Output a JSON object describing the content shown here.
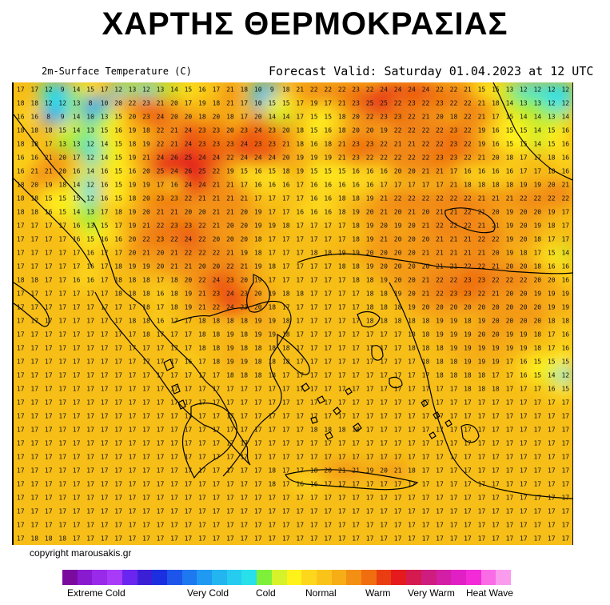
{
  "header": {
    "title": "ΧΑΡΤΗΣ ΘΕΡΜΟΚΡΑΣΙΑΣ",
    "parameter": "2m-Surface Temperature (C)",
    "forecast": "Forecast Valid:  Saturday 01.04.2023 at 12 UTC"
  },
  "footer": {
    "copyright": "copyright marousakis.gr"
  },
  "legend": {
    "colors": [
      "#7b0a9f",
      "#8a1ad0",
      "#9a2ae9",
      "#a83bf7",
      "#6a25f0",
      "#3a1fd6",
      "#1c2fe0",
      "#1d55ea",
      "#1e78ef",
      "#1f99f2",
      "#22b5f0",
      "#25ccf0",
      "#28e0ea",
      "#7ff03a",
      "#d6f22a",
      "#fff21a",
      "#fdd71b",
      "#fac31a",
      "#f6ad16",
      "#f38f12",
      "#f06d10",
      "#ea3e12",
      "#e41a1d",
      "#d41a4e",
      "#cf1c7f",
      "#d31fa5",
      "#e020c4",
      "#f22ad8",
      "#f96ce6",
      "#fb9bee"
    ],
    "labels": [
      {
        "text": "Extreme Cold",
        "key": "extreme_cold"
      },
      {
        "text": "Very Cold",
        "key": "very_cold"
      },
      {
        "text": "Cold",
        "key": "cold"
      },
      {
        "text": "Normal",
        "key": "normal"
      },
      {
        "text": "Warm",
        "key": "warm"
      },
      {
        "text": "Very Warm",
        "key": "very_warm"
      },
      {
        "text": "Heat Wave",
        "key": "heat_wave"
      }
    ]
  },
  "map": {
    "base_color": "#f7be17",
    "grid_rows": [
      [
        17,
        17,
        12,
        9,
        14,
        15,
        17,
        12,
        13,
        12,
        13,
        14,
        15,
        16,
        17,
        21,
        18,
        10,
        9,
        18,
        21,
        22,
        22,
        22,
        23,
        22,
        24,
        24,
        24,
        24,
        22,
        22,
        21,
        15,
        15,
        13,
        12,
        12,
        12,
        12
      ],
      [
        18,
        18,
        12,
        12,
        13,
        8,
        10,
        20,
        22,
        23,
        21,
        20,
        17,
        19,
        18,
        21,
        17,
        10,
        15,
        15,
        17,
        19,
        17,
        21,
        23,
        25,
        25,
        22,
        23,
        22,
        23,
        22,
        22,
        21,
        18,
        14,
        13,
        13,
        12,
        12
      ],
      [
        16,
        16,
        8,
        9,
        14,
        10,
        13,
        15,
        20,
        23,
        24,
        20,
        20,
        18,
        20,
        18,
        17,
        20,
        14,
        14,
        17,
        15,
        15,
        18,
        20,
        22,
        23,
        23,
        22,
        21,
        20,
        18,
        22,
        21,
        17,
        15,
        14,
        14,
        13,
        14
      ],
      [
        18,
        18,
        18,
        15,
        14,
        13,
        15,
        16,
        19,
        18,
        22,
        21,
        24,
        23,
        23,
        20,
        23,
        24,
        23,
        20,
        18,
        15,
        16,
        18,
        20,
        20,
        19,
        22,
        22,
        22,
        22,
        23,
        22,
        19,
        16,
        15,
        15,
        14,
        15,
        16
      ],
      [
        18,
        18,
        17,
        13,
        13,
        12,
        14,
        15,
        18,
        19,
        22,
        21,
        24,
        23,
        23,
        23,
        24,
        23,
        23,
        21,
        18,
        16,
        18,
        21,
        23,
        23,
        22,
        21,
        21,
        22,
        22,
        23,
        22,
        19,
        16,
        15,
        15,
        14,
        15,
        16
      ],
      [
        16,
        16,
        21,
        20,
        17,
        12,
        14,
        15,
        19,
        21,
        24,
        26,
        25,
        24,
        24,
        22,
        24,
        24,
        24,
        20,
        19,
        19,
        19,
        21,
        23,
        22,
        22,
        22,
        22,
        22,
        23,
        23,
        22,
        21,
        20,
        18,
        17,
        17,
        18,
        16
      ],
      [
        16,
        21,
        21,
        20,
        16,
        14,
        16,
        15,
        16,
        20,
        25,
        24,
        26,
        25,
        22,
        19,
        15,
        16,
        15,
        18,
        19,
        15,
        15,
        15,
        16,
        16,
        16,
        20,
        20,
        21,
        21,
        17,
        16,
        16,
        16,
        16,
        17,
        17,
        18,
        16
      ],
      [
        18,
        20,
        19,
        18,
        14,
        12,
        16,
        15,
        19,
        19,
        17,
        16,
        24,
        24,
        21,
        21,
        17,
        16,
        16,
        16,
        17,
        16,
        16,
        16,
        16,
        16,
        17,
        17,
        17,
        17,
        17,
        21,
        18,
        18,
        18,
        18,
        19,
        19,
        20,
        21
      ],
      [
        18,
        18,
        15,
        15,
        15,
        12,
        16,
        15,
        18,
        20,
        23,
        23,
        22,
        21,
        21,
        21,
        21,
        17,
        17,
        17,
        17,
        16,
        16,
        18,
        18,
        19,
        21,
        22,
        22,
        22,
        22,
        22,
        22,
        21,
        21,
        21,
        22,
        22,
        22,
        22
      ],
      [
        18,
        18,
        16,
        15,
        14,
        13,
        17,
        18,
        19,
        20,
        21,
        21,
        20,
        20,
        21,
        21,
        20,
        19,
        17,
        17,
        16,
        16,
        16,
        18,
        19,
        20,
        21,
        20,
        21,
        20,
        21,
        21,
        22,
        21,
        20,
        19,
        20,
        20,
        19,
        17
      ],
      [
        17,
        17,
        17,
        17,
        16,
        13,
        15,
        17,
        19,
        21,
        22,
        23,
        23,
        22,
        21,
        20,
        20,
        19,
        19,
        18,
        17,
        17,
        17,
        17,
        18,
        19,
        20,
        19,
        20,
        21,
        22,
        22,
        22,
        21,
        21,
        19,
        20,
        19,
        18,
        17
      ],
      [
        17,
        17,
        17,
        17,
        16,
        15,
        16,
        16,
        20,
        22,
        23,
        22,
        24,
        22,
        20,
        20,
        20,
        18,
        17,
        17,
        17,
        17,
        17,
        17,
        18,
        19,
        21,
        20,
        20,
        20,
        21,
        21,
        21,
        22,
        22,
        19,
        20,
        18,
        17,
        17
      ],
      [
        17,
        17,
        17,
        17,
        17,
        16,
        17,
        17,
        20,
        21,
        20,
        21,
        22,
        22,
        22,
        21,
        19,
        18,
        17,
        17,
        17,
        18,
        18,
        19,
        19,
        20,
        20,
        20,
        20,
        21,
        21,
        21,
        21,
        21,
        20,
        19,
        18,
        17,
        15,
        14
      ],
      [
        17,
        17,
        17,
        17,
        17,
        16,
        17,
        18,
        19,
        19,
        20,
        21,
        21,
        20,
        20,
        22,
        21,
        19,
        18,
        17,
        17,
        17,
        17,
        18,
        18,
        19,
        20,
        20,
        20,
        20,
        21,
        21,
        22,
        22,
        21,
        20,
        20,
        18,
        16,
        16
      ],
      [
        18,
        18,
        17,
        17,
        16,
        16,
        17,
        18,
        18,
        18,
        17,
        18,
        20,
        22,
        24,
        23,
        20,
        19,
        17,
        17,
        17,
        17,
        17,
        17,
        18,
        18,
        19,
        20,
        20,
        21,
        22,
        22,
        23,
        23,
        22,
        22,
        22,
        20,
        20,
        16
      ],
      [
        17,
        17,
        17,
        17,
        17,
        17,
        17,
        18,
        18,
        18,
        16,
        18,
        19,
        21,
        23,
        24,
        23,
        20,
        19,
        18,
        18,
        17,
        17,
        17,
        17,
        18,
        18,
        19,
        20,
        21,
        22,
        23,
        23,
        22,
        21,
        20,
        20,
        19,
        19,
        19
      ],
      [
        17,
        17,
        17,
        17,
        17,
        17,
        17,
        17,
        17,
        18,
        17,
        18,
        19,
        21,
        22,
        24,
        23,
        20,
        18,
        17,
        17,
        17,
        17,
        17,
        17,
        18,
        18,
        18,
        19,
        20,
        20,
        20,
        20,
        20,
        20,
        20,
        20,
        20,
        19,
        19
      ],
      [
        17,
        17,
        17,
        17,
        17,
        17,
        17,
        17,
        18,
        18,
        16,
        17,
        17,
        18,
        18,
        18,
        18,
        19,
        19,
        18,
        17,
        17,
        17,
        17,
        17,
        18,
        18,
        18,
        18,
        18,
        19,
        19,
        18,
        19,
        20,
        20,
        20,
        20,
        18,
        18
      ],
      [
        17,
        17,
        17,
        17,
        17,
        17,
        17,
        17,
        17,
        18,
        17,
        17,
        17,
        18,
        18,
        19,
        18,
        19,
        19,
        18,
        17,
        17,
        17,
        17,
        17,
        17,
        17,
        17,
        18,
        18,
        19,
        19,
        19,
        20,
        20,
        19,
        19,
        18,
        17,
        16
      ],
      [
        17,
        17,
        17,
        17,
        17,
        17,
        17,
        17,
        17,
        17,
        17,
        17,
        17,
        18,
        18,
        19,
        18,
        18,
        18,
        18,
        17,
        17,
        17,
        17,
        17,
        17,
        17,
        17,
        18,
        18,
        18,
        19,
        19,
        19,
        19,
        19,
        19,
        18,
        17,
        16
      ],
      [
        17,
        17,
        17,
        17,
        17,
        17,
        17,
        17,
        17,
        17,
        17,
        17,
        16,
        17,
        18,
        19,
        19,
        18,
        18,
        18,
        17,
        17,
        17,
        17,
        17,
        17,
        17,
        17,
        17,
        18,
        18,
        18,
        19,
        19,
        19,
        17,
        16,
        15,
        15,
        15
      ],
      [
        17,
        17,
        17,
        17,
        17,
        17,
        17,
        17,
        17,
        17,
        17,
        17,
        17,
        17,
        17,
        18,
        18,
        18,
        18,
        17,
        17,
        17,
        17,
        17,
        17,
        17,
        17,
        17,
        17,
        17,
        18,
        18,
        18,
        18,
        17,
        17,
        16,
        15,
        14,
        12
      ],
      [
        17,
        17,
        17,
        17,
        17,
        17,
        17,
        17,
        17,
        17,
        17,
        17,
        17,
        17,
        17,
        17,
        17,
        17,
        17,
        17,
        17,
        17,
        17,
        17,
        17,
        17,
        17,
        17,
        17,
        17,
        17,
        17,
        18,
        18,
        18,
        17,
        17,
        17,
        16,
        15
      ],
      [
        17,
        17,
        17,
        17,
        17,
        17,
        17,
        17,
        17,
        17,
        17,
        17,
        17,
        17,
        17,
        17,
        17,
        17,
        17,
        17,
        17,
        17,
        17,
        17,
        17,
        17,
        17,
        17,
        17,
        17,
        17,
        17,
        17,
        17,
        17,
        17,
        17,
        17,
        17,
        17
      ],
      [
        17,
        17,
        17,
        17,
        17,
        17,
        17,
        17,
        17,
        17,
        17,
        17,
        17,
        17,
        17,
        17,
        17,
        17,
        17,
        17,
        17,
        17,
        17,
        17,
        17,
        17,
        17,
        17,
        17,
        17,
        17,
        17,
        17,
        17,
        17,
        17,
        17,
        17,
        17,
        17
      ],
      [
        17,
        17,
        17,
        17,
        17,
        17,
        17,
        17,
        17,
        17,
        17,
        17,
        17,
        17,
        17,
        17,
        17,
        17,
        17,
        17,
        17,
        18,
        18,
        18,
        18,
        17,
        17,
        17,
        17,
        17,
        17,
        17,
        17,
        17,
        17,
        17,
        17,
        17,
        17,
        17
      ],
      [
        17,
        17,
        17,
        17,
        17,
        17,
        17,
        17,
        17,
        17,
        17,
        17,
        17,
        17,
        17,
        17,
        17,
        17,
        17,
        17,
        17,
        17,
        17,
        17,
        17,
        17,
        17,
        17,
        17,
        17,
        17,
        17,
        17,
        17,
        17,
        17,
        17,
        17,
        17,
        17
      ],
      [
        17,
        17,
        17,
        17,
        17,
        17,
        17,
        17,
        17,
        17,
        17,
        17,
        17,
        17,
        17,
        17,
        17,
        17,
        17,
        17,
        17,
        17,
        17,
        17,
        17,
        17,
        17,
        17,
        17,
        17,
        17,
        17,
        17,
        17,
        17,
        17,
        17,
        17,
        17,
        17
      ],
      [
        17,
        17,
        17,
        17,
        17,
        17,
        17,
        17,
        17,
        17,
        17,
        17,
        17,
        17,
        17,
        17,
        17,
        17,
        18,
        17,
        17,
        18,
        20,
        21,
        21,
        19,
        20,
        21,
        18,
        17,
        17,
        17,
        17,
        17,
        17,
        17,
        17,
        17,
        17,
        17
      ],
      [
        17,
        17,
        17,
        17,
        17,
        17,
        17,
        17,
        17,
        17,
        17,
        17,
        17,
        17,
        17,
        17,
        17,
        17,
        18,
        17,
        16,
        16,
        17,
        17,
        17,
        17,
        17,
        17,
        17,
        17,
        17,
        17,
        17,
        17,
        17,
        17,
        17,
        17,
        17,
        17
      ],
      [
        17,
        17,
        17,
        17,
        17,
        17,
        17,
        17,
        17,
        17,
        17,
        17,
        17,
        17,
        17,
        17,
        17,
        17,
        17,
        17,
        17,
        17,
        17,
        17,
        17,
        17,
        17,
        17,
        17,
        17,
        17,
        17,
        17,
        17,
        17,
        17,
        17,
        17,
        17,
        17
      ],
      [
        17,
        17,
        17,
        17,
        17,
        17,
        17,
        17,
        17,
        17,
        17,
        17,
        17,
        17,
        17,
        17,
        17,
        17,
        17,
        17,
        17,
        17,
        17,
        17,
        17,
        17,
        17,
        17,
        17,
        17,
        17,
        17,
        17,
        17,
        17,
        17,
        17,
        17,
        17,
        17
      ],
      [
        17,
        17,
        17,
        17,
        17,
        17,
        17,
        17,
        17,
        17,
        17,
        17,
        17,
        17,
        17,
        17,
        17,
        17,
        17,
        17,
        17,
        17,
        17,
        17,
        17,
        17,
        17,
        17,
        17,
        17,
        17,
        17,
        17,
        17,
        17,
        17,
        17,
        17,
        17,
        17
      ],
      [
        17,
        18,
        18,
        18,
        17,
        17,
        17,
        17,
        17,
        17,
        17,
        17,
        17,
        17,
        17,
        17,
        17,
        17,
        17,
        17,
        17,
        17,
        17,
        17,
        17,
        17,
        17,
        17,
        17,
        17,
        17,
        17,
        17,
        17,
        17,
        17,
        17,
        17,
        17,
        17
      ]
    ]
  }
}
